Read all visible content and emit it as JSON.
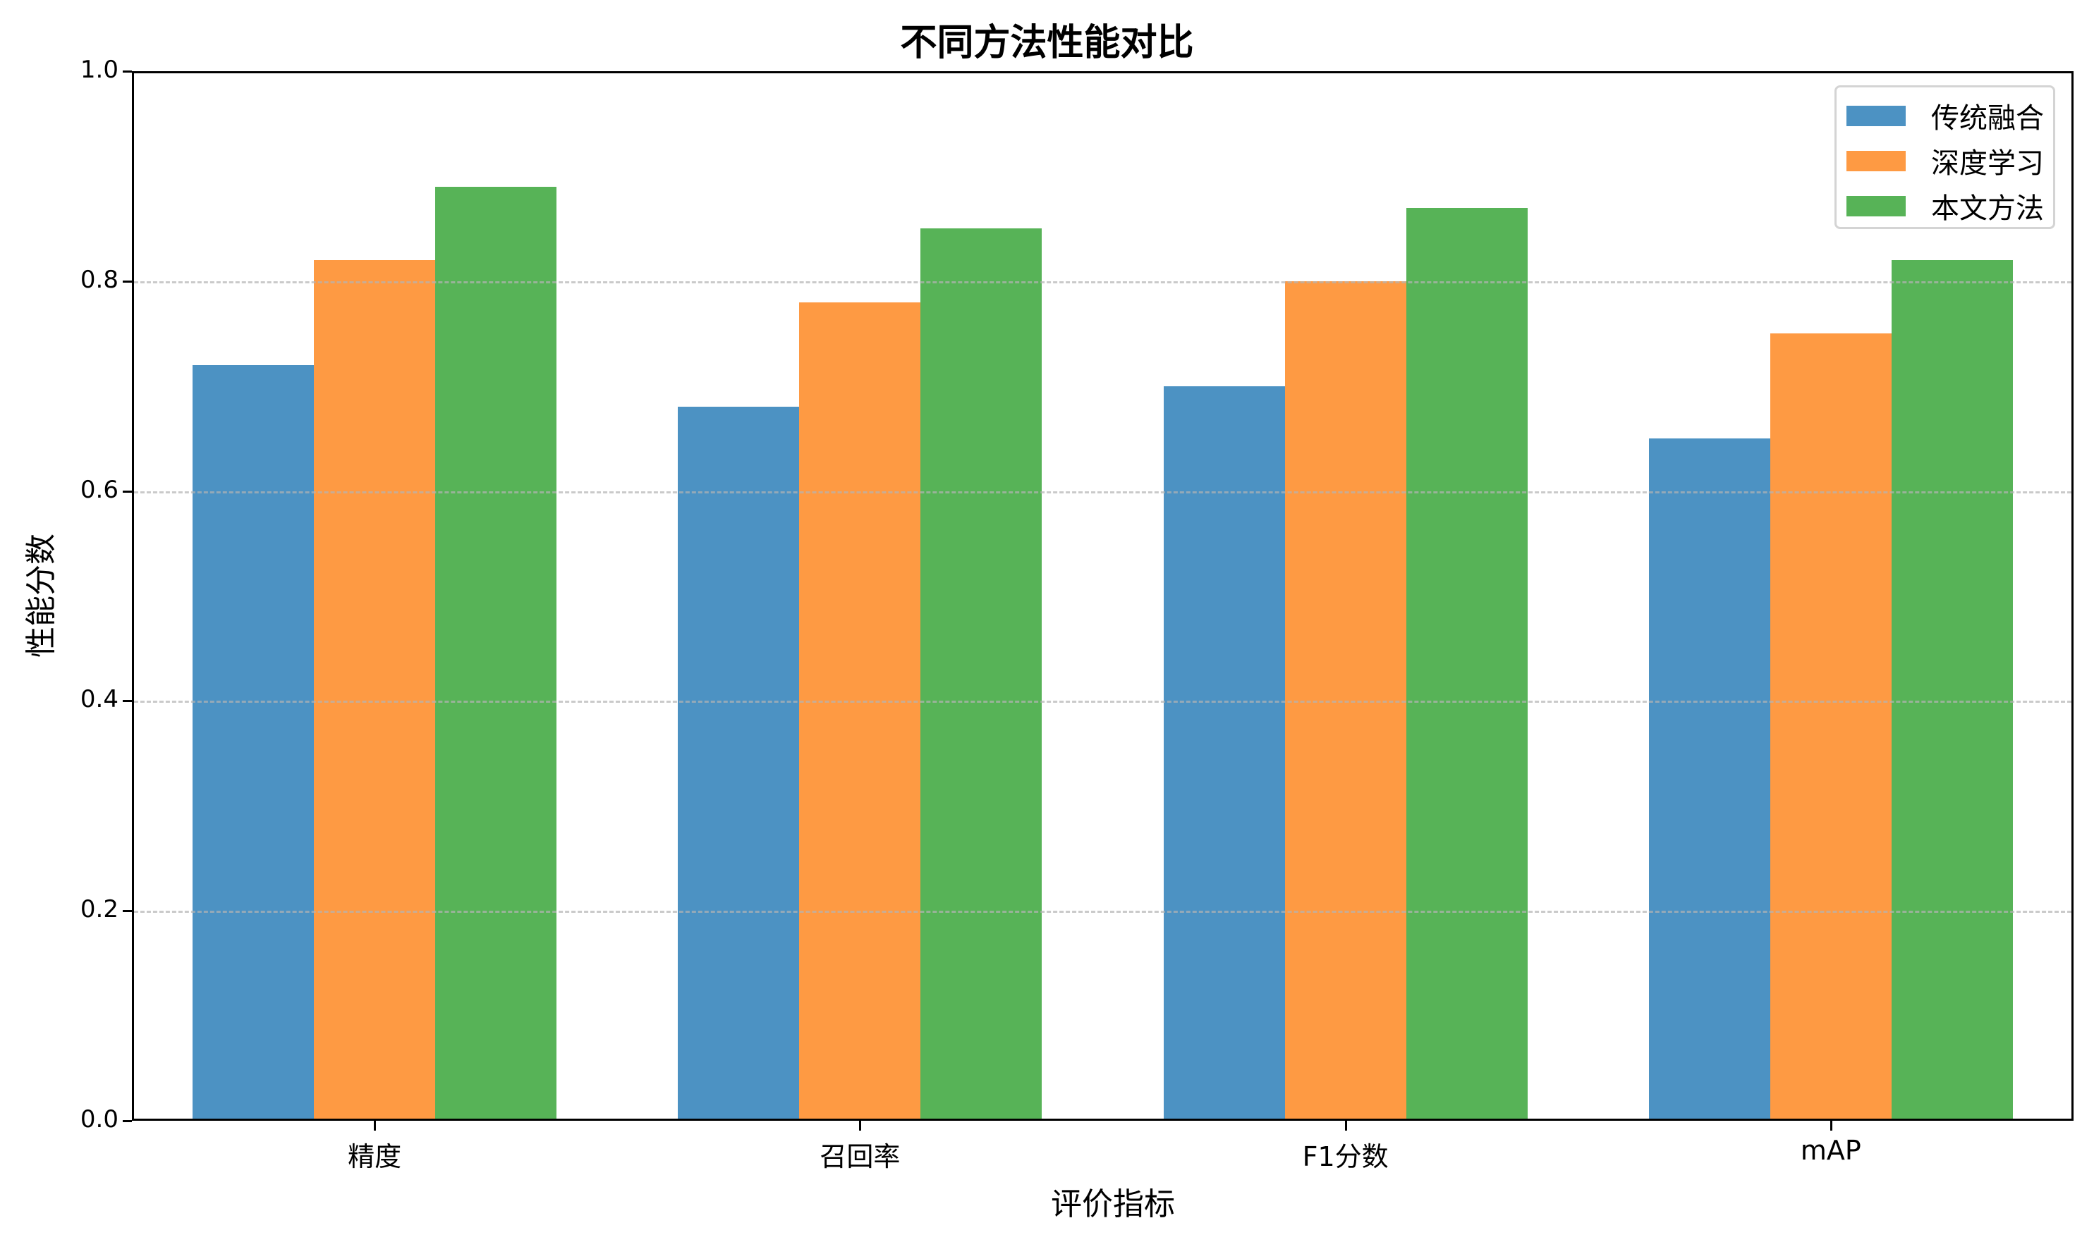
{
  "chart_data": {
    "type": "bar",
    "title": "不同方法性能对比",
    "xlabel": "评价指标",
    "ylabel": "性能分数",
    "categories": [
      "精度",
      "召回率",
      "F1分数",
      "mAP"
    ],
    "series": [
      {
        "name": "传统融合",
        "color": "#4c92c3",
        "values": [
          0.72,
          0.68,
          0.7,
          0.65
        ]
      },
      {
        "name": "深度学习",
        "color": "#fe9a43",
        "values": [
          0.82,
          0.78,
          0.8,
          0.75
        ]
      },
      {
        "name": "本文方法",
        "color": "#57b357",
        "values": [
          0.89,
          0.85,
          0.87,
          0.82
        ]
      }
    ],
    "ylim": [
      0,
      1.0
    ],
    "yticks": [
      "0.0",
      "0.2",
      "0.4",
      "0.6",
      "0.8",
      "1.0"
    ],
    "grid": {
      "axis": "y",
      "style": "dashed"
    },
    "legend_position": "upper right"
  }
}
